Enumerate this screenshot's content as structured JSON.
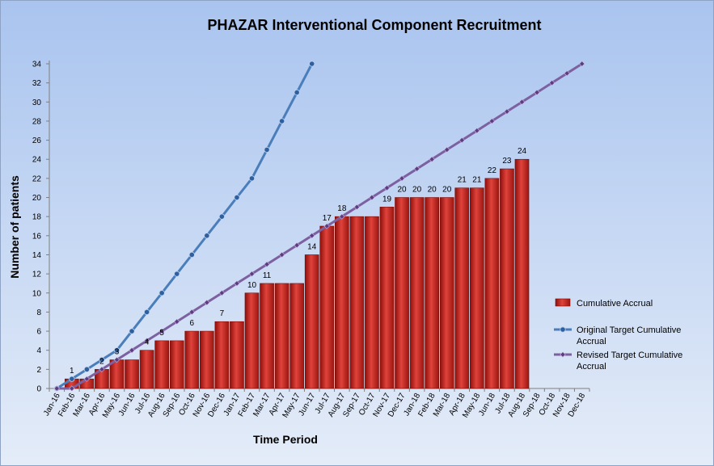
{
  "chart_data": {
    "type": "bar",
    "title": "PHAZAR Interventional Component Recruitment",
    "xlabel": "Time Period",
    "ylabel": "Number of patients",
    "ylim": [
      0,
      34
    ],
    "yticks": [
      0,
      2,
      4,
      6,
      8,
      10,
      12,
      14,
      16,
      18,
      20,
      22,
      24,
      26,
      28,
      30,
      32,
      34
    ],
    "grid": false,
    "legend": "right",
    "categories": [
      "Jan-16",
      "Feb-16",
      "Mar-16",
      "Apr-16",
      "May-16",
      "Jun-16",
      "Jul-16",
      "Aug-16",
      "Sep-16",
      "Oct-16",
      "Nov-16",
      "Dec-16",
      "Jan-17",
      "Feb-17",
      "Mar-17",
      "Apr-17",
      "May-17",
      "Jun-17",
      "Jul-17",
      "Aug-17",
      "Sep-17",
      "Oct-17",
      "Nov-17",
      "Dec-17",
      "Jan-18",
      "Feb-18",
      "Mar-18",
      "Apr-18",
      "May-18",
      "Jun-18",
      "Jul-18",
      "Aug-18",
      "Sep-18",
      "Oct-18",
      "Nov-18",
      "Dec-18"
    ],
    "series": [
      {
        "name": "Cumulative Accrual",
        "kind": "bar",
        "color": "#c0201a",
        "values": [
          0,
          1,
          1,
          2,
          3,
          3,
          4,
          5,
          5,
          6,
          6,
          7,
          7,
          10,
          11,
          11,
          11,
          14,
          17,
          18,
          18,
          18,
          19,
          20,
          20,
          20,
          20,
          21,
          21,
          22,
          23,
          24,
          null,
          null,
          null,
          null
        ]
      },
      {
        "name": "Original Target Cumulative Accrual",
        "kind": "line",
        "color": "#4a7ebb",
        "values": [
          0,
          1,
          2,
          3,
          4,
          6,
          8,
          10,
          12,
          14,
          16,
          18,
          20,
          22,
          25,
          28,
          31,
          34,
          null,
          null,
          null,
          null,
          null,
          null,
          null,
          null,
          null,
          null,
          null,
          null,
          null,
          null,
          null,
          null,
          null,
          null
        ]
      },
      {
        "name": "Revised Target Cumulative Accrual",
        "kind": "line",
        "color": "#7d60a0",
        "values": [
          0,
          0,
          1,
          2,
          3,
          4,
          5,
          6,
          7,
          8,
          9,
          10,
          11,
          12,
          13,
          14,
          15,
          16,
          17,
          18,
          19,
          20,
          21,
          22,
          23,
          24,
          25,
          26,
          27,
          28,
          29,
          30,
          31,
          32,
          33,
          34
        ]
      }
    ],
    "data_labels": [
      {
        "index": 1,
        "text": "1"
      },
      {
        "index": 3,
        "text": "2"
      },
      {
        "index": 4,
        "text": "3"
      },
      {
        "index": 6,
        "text": "4"
      },
      {
        "index": 7,
        "text": "5"
      },
      {
        "index": 9,
        "text": "6"
      },
      {
        "index": 11,
        "text": "7"
      },
      {
        "index": 13,
        "text": "10"
      },
      {
        "index": 14,
        "text": "11"
      },
      {
        "index": 17,
        "text": "14"
      },
      {
        "index": 18,
        "text": "17"
      },
      {
        "index": 19,
        "text": "18"
      },
      {
        "index": 22,
        "text": "19"
      },
      {
        "index": 23,
        "text": "20"
      },
      {
        "index": 24,
        "text": "20"
      },
      {
        "index": 25,
        "text": "20"
      },
      {
        "index": 26,
        "text": "20"
      },
      {
        "index": 27,
        "text": "21"
      },
      {
        "index": 28,
        "text": "21"
      },
      {
        "index": 29,
        "text": "22"
      },
      {
        "index": 30,
        "text": "23"
      },
      {
        "index": 31,
        "text": "24"
      }
    ],
    "legend_entries": [
      {
        "lines": [
          "Cumulative Accrual"
        ]
      },
      {
        "lines": [
          "Original Target Cumulative",
          "Accrual"
        ]
      },
      {
        "lines": [
          "Revised Target Cumulative",
          "Accrual"
        ]
      }
    ]
  }
}
